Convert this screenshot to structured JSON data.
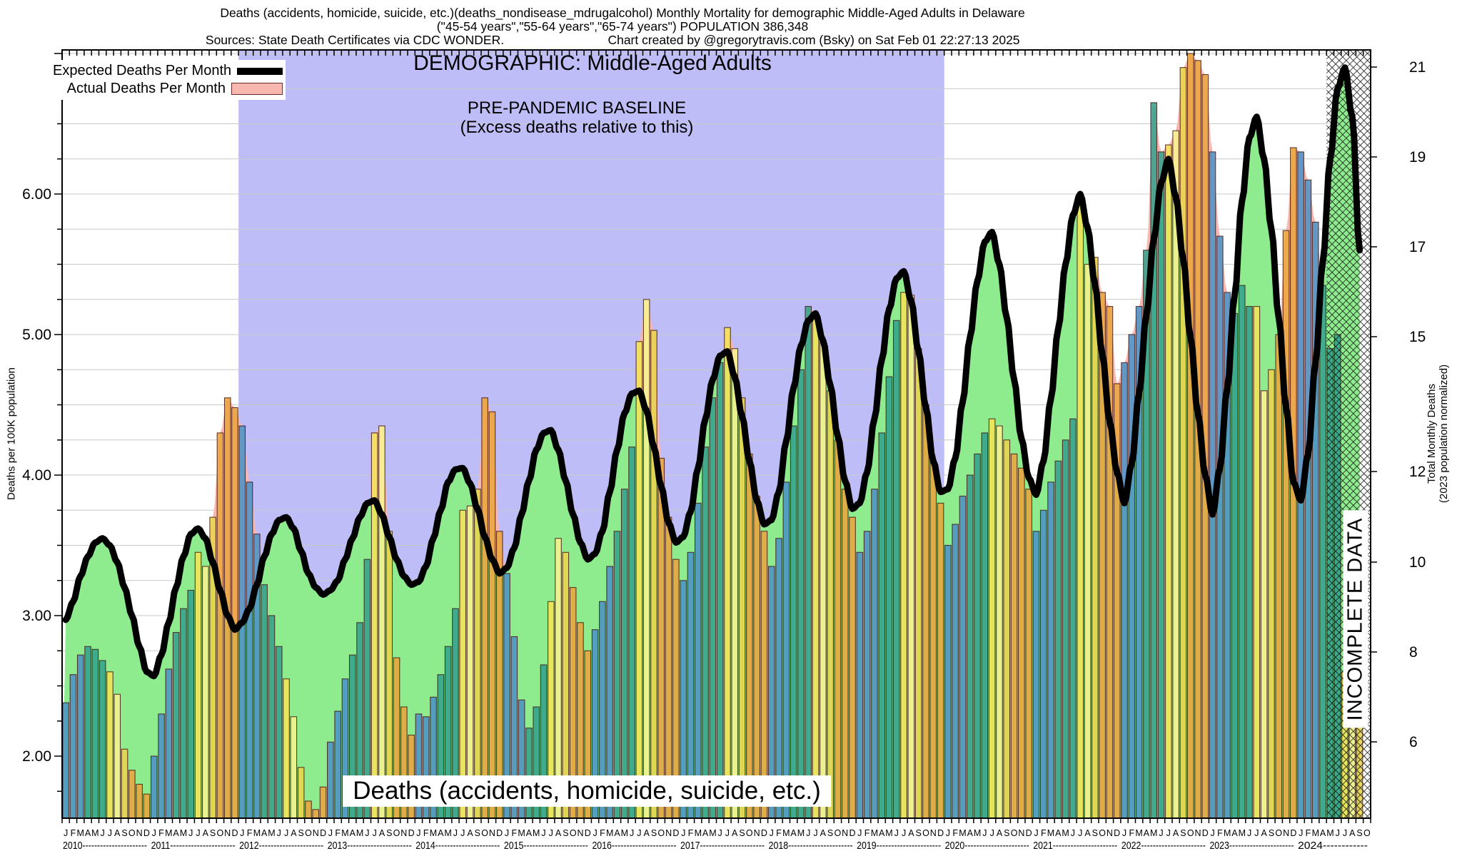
{
  "header": {
    "line1": "Deaths (accidents, homicide, suicide, etc.)(deaths_nondisease_mdrugalcohol) Monthly Mortality for demographic Middle-Aged Adults in Delaware",
    "line2": "(\"45-54 years\",\"55-64 years\",\"65-74 years\") POPULATION 386,348",
    "sources": "Sources: State Death Certificates via CDC WONDER.",
    "credit": "Chart created by @gregorytravis.com (Bsky) on Sat Feb 01 22:27:13 2025"
  },
  "legend": {
    "expected_label": "Expected Deaths Per Month",
    "actual_label": "Actual Deaths Per Month"
  },
  "overlay": {
    "demographic": "DEMOGRAPHIC: Middle-Aged Adults",
    "baseline1": "PRE-PANDEMIC BASELINE",
    "baseline2": "(Excess deaths relative to this)",
    "incomplete": "INCOMPLETE DATA",
    "bottom_label": "Deaths (accidents, homicide, suicide, etc.)"
  },
  "axes": {
    "left_title": "Deaths per 100K population",
    "right_title1": "Total Monthly Deaths",
    "right_title2": "(2023 population normalized)",
    "left_ticks": [
      "2.00",
      "3.00",
      "4.00",
      "5.00",
      "6.00"
    ],
    "right_ticks": [
      [
        "21",
        94
      ],
      [
        "19",
        220
      ],
      [
        "17",
        346
      ],
      [
        "15",
        472
      ],
      [
        "12",
        661
      ],
      [
        "10",
        788
      ],
      [
        "8",
        914
      ],
      [
        "6",
        1040
      ]
    ]
  },
  "chart_data": {
    "type": "bar",
    "title": "Monthly mortality, actual bars vs expected baseline curve",
    "ylabel_left": "Deaths per 100K population",
    "ylabel_right": "Total Monthly Deaths (2023 population normalized)",
    "ylim_left": [
      1.56,
      7.02
    ],
    "grid": true,
    "month_letters": [
      "J",
      "F",
      "M",
      "A",
      "M",
      "J",
      "J",
      "A",
      "S",
      "O",
      "N",
      "D"
    ],
    "years": [
      "2010",
      "2011",
      "2012",
      "2013",
      "2014",
      "2015",
      "2016",
      "2017",
      "2018",
      "2019",
      "2020",
      "2021",
      "2022",
      "2023",
      "2024"
    ],
    "slots": 178,
    "baseline_region": {
      "start_month_index": 24,
      "end_month_index": 120,
      "color": "#bfbdf8"
    },
    "incomplete_region": {
      "start_month_index": 172,
      "end_month_index": 178
    },
    "colors": {
      "winter": "#4d92c6",
      "spring": "#36a18c",
      "jul": "#f2e457",
      "aug": "#f7f291",
      "sep": "#e8d44c",
      "fall": "#eaa43e",
      "actual_area": "#f8b8b0",
      "expected_area": "#8eec8e",
      "expected_line": "#000000",
      "bar_stroke": "#401010",
      "gridline": "#c9c9c9"
    },
    "series": [
      {
        "name": "Actual Deaths Per Month",
        "values_by_year": [
          [
            2.38,
            2.58,
            2.72,
            2.78,
            2.76,
            2.68,
            2.6,
            2.44,
            2.05,
            1.9,
            1.8,
            1.73
          ],
          [
            2.0,
            2.3,
            2.62,
            2.88,
            3.05,
            3.18,
            3.45,
            3.35,
            3.7,
            4.3,
            4.55,
            4.48
          ],
          [
            4.35,
            3.95,
            3.58,
            3.22,
            3.0,
            2.78,
            2.55,
            2.28,
            1.92,
            1.68,
            1.62,
            1.78
          ],
          [
            2.1,
            2.32,
            2.55,
            2.72,
            2.95,
            3.4,
            4.3,
            4.35,
            3.6,
            2.7,
            2.35,
            2.15
          ],
          [
            2.3,
            2.28,
            2.42,
            2.58,
            2.78,
            3.05,
            3.75,
            3.78,
            3.9,
            4.55,
            4.45,
            3.6
          ],
          [
            3.3,
            2.85,
            2.4,
            2.2,
            2.35,
            2.65,
            3.1,
            3.55,
            3.45,
            3.2,
            2.95,
            2.75
          ],
          [
            2.9,
            3.1,
            3.35,
            3.6,
            3.9,
            4.2,
            4.95,
            5.25,
            5.03,
            4.12,
            3.7,
            3.4
          ],
          [
            3.25,
            3.45,
            3.8,
            4.2,
            4.55,
            4.8,
            5.05,
            4.9,
            4.55,
            4.15,
            3.85,
            3.6
          ],
          [
            3.35,
            3.55,
            3.95,
            4.35,
            4.75,
            5.2,
            5.15,
            4.95,
            4.6,
            4.25,
            3.9,
            3.7
          ],
          [
            3.45,
            3.6,
            3.9,
            4.3,
            4.7,
            5.1,
            5.3,
            5.28,
            4.9,
            4.5,
            4.1,
            3.8
          ],
          [
            3.5,
            3.65,
            3.85,
            4.0,
            4.15,
            4.3,
            4.4,
            4.35,
            4.25,
            4.15,
            4.05,
            3.9
          ],
          [
            3.6,
            3.75,
            3.95,
            4.1,
            4.25,
            4.4,
            5.95,
            5.5,
            5.55,
            5.3,
            5.2,
            4.65
          ],
          [
            4.8,
            5.0,
            5.2,
            5.6,
            6.65,
            6.3,
            6.35,
            6.45,
            6.9,
            7.0,
            6.95,
            6.85
          ],
          [
            6.3,
            5.7,
            5.3,
            5.15,
            5.35,
            5.2,
            5.2,
            4.6,
            4.75,
            5.0,
            5.74,
            6.33
          ],
          [
            6.3,
            6.1,
            5.8,
            5.35,
            4.9,
            5.0,
            2.6,
            2.45,
            2.3
          ]
        ]
      },
      {
        "name": "Expected Deaths Per Month",
        "values_by_year": [
          [
            2.97,
            3.1,
            3.28,
            3.42,
            3.52,
            3.55,
            3.5,
            3.38,
            3.2,
            3.0,
            2.78,
            2.6
          ],
          [
            2.57,
            2.72,
            2.95,
            3.2,
            3.42,
            3.58,
            3.62,
            3.55,
            3.38,
            3.18,
            3.0,
            2.9
          ],
          [
            2.95,
            3.05,
            3.22,
            3.42,
            3.58,
            3.68,
            3.7,
            3.62,
            3.46,
            3.3,
            3.2,
            3.15
          ],
          [
            3.18,
            3.25,
            3.4,
            3.55,
            3.7,
            3.8,
            3.82,
            3.72,
            3.56,
            3.4,
            3.28,
            3.22
          ],
          [
            3.24,
            3.35,
            3.55,
            3.75,
            3.95,
            4.04,
            4.05,
            3.94,
            3.76,
            3.56,
            3.4,
            3.3
          ],
          [
            3.34,
            3.48,
            3.72,
            3.96,
            4.18,
            4.3,
            4.32,
            4.18,
            3.96,
            3.72,
            3.52,
            3.4
          ],
          [
            3.44,
            3.6,
            3.88,
            4.18,
            4.44,
            4.58,
            4.6,
            4.46,
            4.2,
            3.92,
            3.66,
            3.52
          ],
          [
            3.56,
            3.74,
            4.05,
            4.4,
            4.68,
            4.85,
            4.88,
            4.7,
            4.42,
            4.1,
            3.82,
            3.65
          ],
          [
            3.68,
            3.88,
            4.24,
            4.62,
            4.92,
            5.1,
            5.15,
            4.96,
            4.64,
            4.28,
            3.96,
            3.76
          ],
          [
            3.8,
            4.02,
            4.4,
            4.82,
            5.18,
            5.4,
            5.45,
            5.24,
            4.88,
            4.48,
            4.1,
            3.88
          ],
          [
            3.9,
            4.12,
            4.52,
            4.98,
            5.38,
            5.66,
            5.73,
            5.5,
            5.12,
            4.68,
            4.26,
            3.98
          ],
          [
            3.86,
            4.1,
            4.54,
            5.04,
            5.5,
            5.85,
            6.0,
            5.76,
            5.36,
            4.86,
            4.38,
            4.02
          ],
          [
            3.8,
            4.08,
            4.58,
            5.14,
            5.68,
            6.08,
            6.25,
            5.98,
            5.54,
            4.98,
            4.44,
            4.0
          ],
          [
            3.72,
            4.05,
            4.62,
            5.28,
            5.95,
            6.4,
            6.55,
            6.25,
            5.75,
            5.12,
            4.48,
            3.95
          ],
          [
            3.82,
            4.15,
            4.8,
            5.52,
            6.25,
            6.75,
            6.9,
            6.55,
            5.6
          ]
        ]
      }
    ]
  }
}
